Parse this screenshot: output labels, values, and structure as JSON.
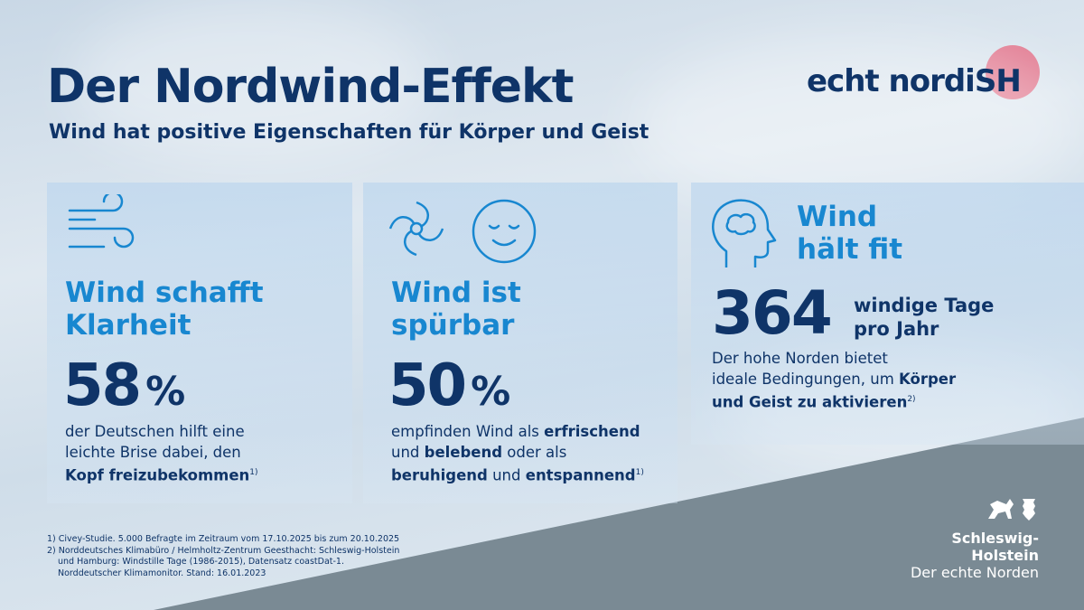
{
  "title": "Der Nordwind-Effekt",
  "subtitle": "Wind hat positive Eigenschaften für Körper und Geist",
  "logo": {
    "text_a": "echt nordi",
    "text_b": "SH",
    "accent": "#e27d93"
  },
  "colors": {
    "navy": "#0f3468",
    "blue": "#1887d0"
  },
  "panels": [
    {
      "icon": "wind-icon",
      "title_1": "Wind schafft",
      "title_2": "Klarheit",
      "value": "58",
      "unit": "%",
      "desc_1": "der Deutschen hilft eine",
      "desc_2": "leichte Brise dabei, den",
      "desc_bold": "Kopf freizubekommen",
      "ref": "1)"
    },
    {
      "icon": "fan-icon",
      "icon2": "relaxed-face-icon",
      "title_1": "Wind ist",
      "title_2": "spürbar",
      "value": "50",
      "unit": "%",
      "desc_a": "empfinden Wind als ",
      "desc_b": "erfrischend",
      "desc_c": "und ",
      "desc_d": "belebend",
      "desc_e": " oder als",
      "desc_f": "beruhigend",
      "desc_g": " und ",
      "desc_h": "entspannend",
      "ref": "1)"
    },
    {
      "icon": "head-brain-icon",
      "title_1": "Wind",
      "title_2": "hält fit",
      "value": "364",
      "value_label_1": "windige Tage",
      "value_label_2": "pro Jahr",
      "desc_1": "Der hohe Norden bietet",
      "desc_2": "ideale Bedingungen, um ",
      "desc_bold_1": "Körper",
      "desc_bold_2": "und Geist zu aktivieren",
      "ref": "2)"
    }
  ],
  "footnotes": [
    "1) Civey-Studie. 5.000 Befragte im Zeitraum vom 17.10.2025 bis zum 20.10.2025",
    "2) Norddeutsches Klimabüro / Helmholtz-Zentrum Geesthacht: Schleswig-Holstein",
    "und Hamburg: Windstille Tage (1986-2015), Datensatz coastDat-1.",
    "Norddeutscher Klimamonitor. Stand: 16.01.2023"
  ],
  "state_logo": {
    "name": "Schleswig-Holstein",
    "slogan": "Der echte Norden"
  }
}
